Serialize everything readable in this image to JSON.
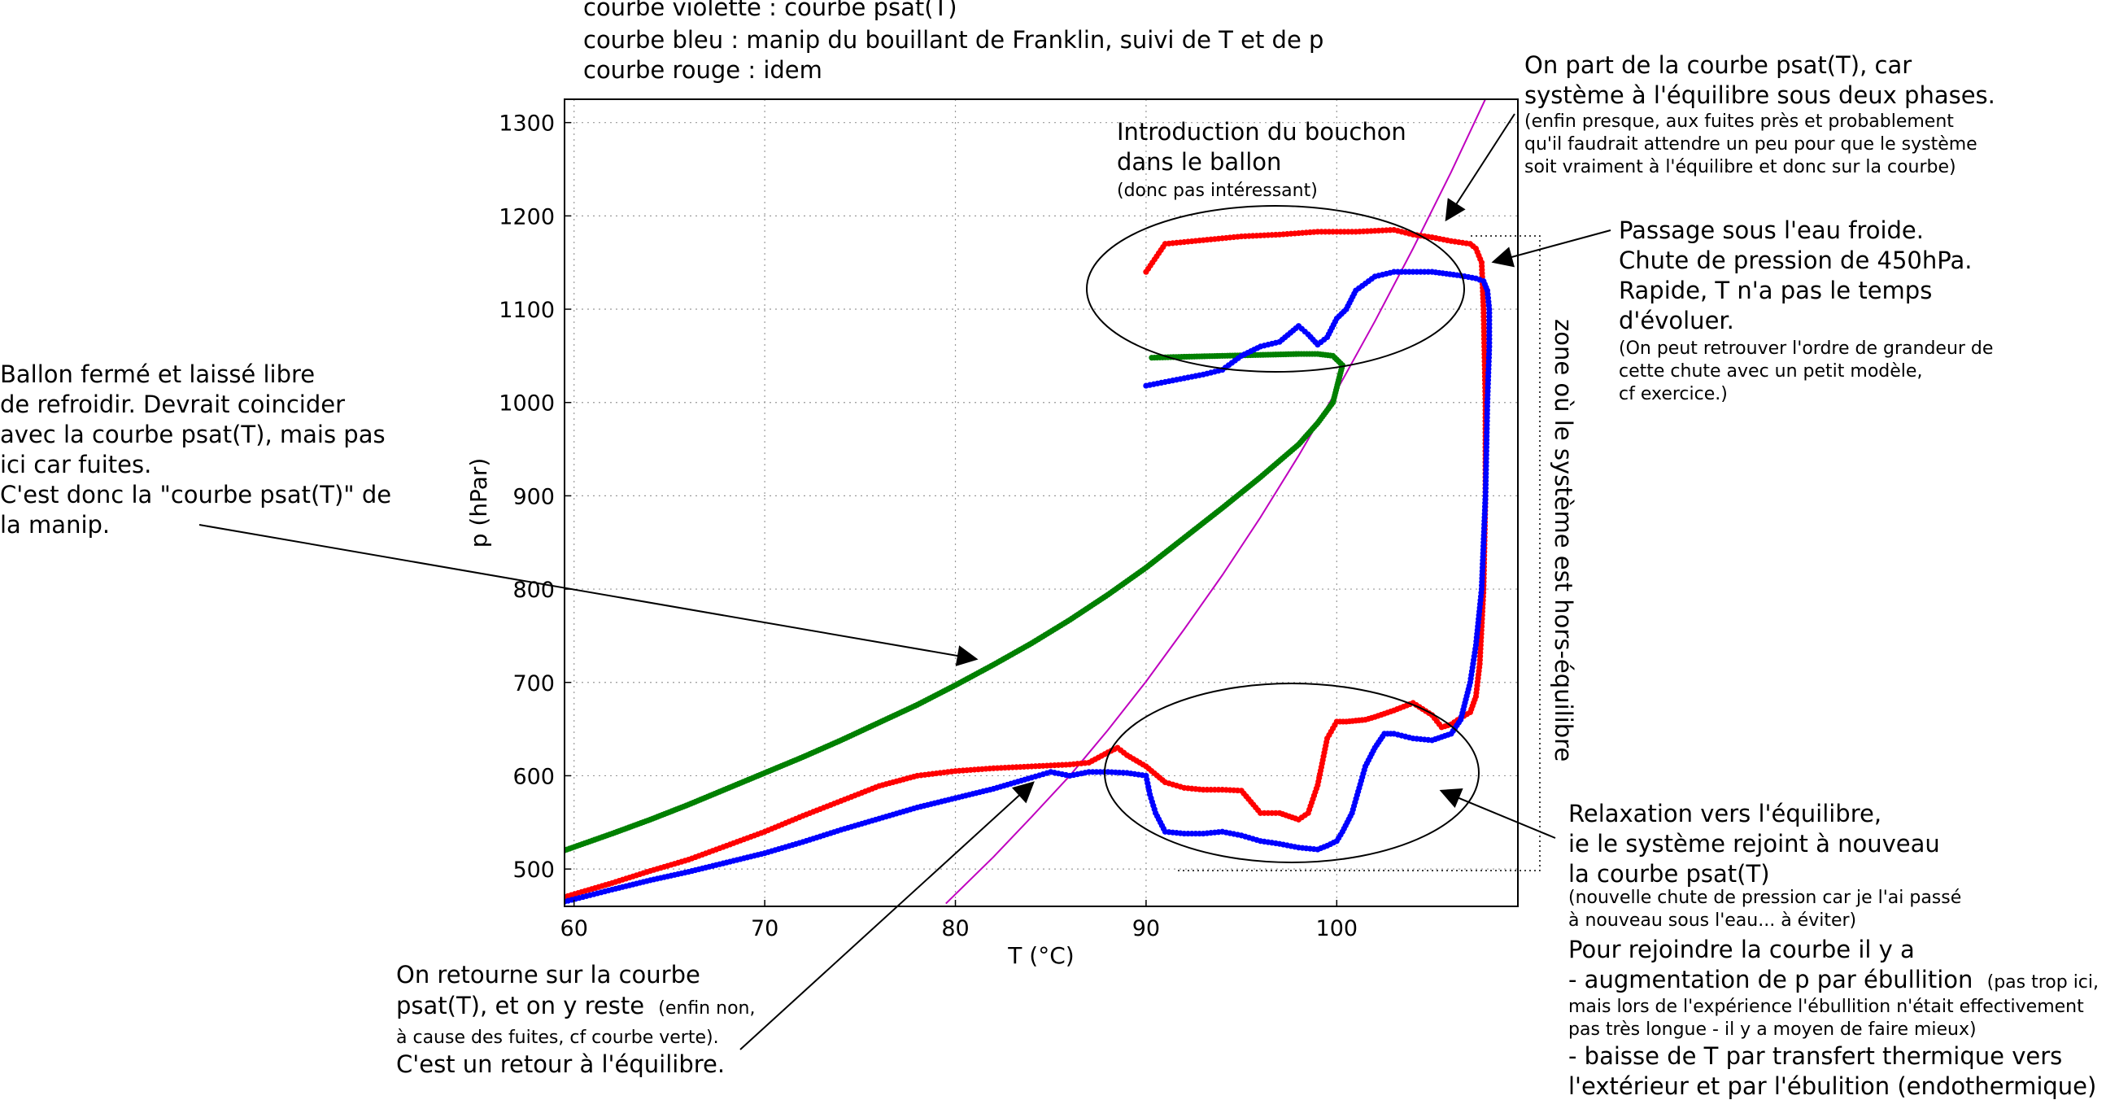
{
  "chart_data": {
    "type": "scatter",
    "xlabel": "T (°C)",
    "ylabel": "p (hPar)",
    "xlim": [
      59.5,
      109.5
    ],
    "ylim": [
      460,
      1325
    ],
    "xticks": [
      60,
      70,
      80,
      90,
      100
    ],
    "yticks": [
      500,
      600,
      700,
      800,
      900,
      1000,
      1100,
      1200,
      1300
    ],
    "grid": true,
    "legend_text": [
      "courbe violette : courbe psat(T)",
      "courbe bleu : manip du bouillant de Franklin, suivi de T et de p",
      "courbe rouge : idem"
    ],
    "colors": {
      "psat": "#bf00bf",
      "blue": "#0000ff",
      "red": "#ff0000",
      "green": "#008000"
    },
    "psat_curve": {
      "x": [
        79.5,
        82,
        84,
        86,
        88,
        90,
        92,
        94,
        96,
        98,
        100,
        102,
        104,
        106,
        108
      ],
      "y": [
        463,
        513,
        556,
        600,
        649,
        701,
        757,
        815,
        877,
        943,
        1013,
        1087,
        1165,
        1247,
        1334
      ]
    },
    "green_series": {
      "x": [
        59.5,
        62,
        64,
        66,
        68,
        70,
        72,
        74,
        76,
        78,
        80,
        82,
        84,
        86,
        88,
        90,
        92,
        94,
        96,
        98,
        99,
        99.8,
        100.3,
        99.8,
        99,
        98,
        96,
        94,
        92,
        90.3
      ],
      "y": [
        520,
        538,
        553,
        569,
        586,
        603,
        620,
        638,
        657,
        676,
        697,
        719,
        742,
        767,
        794,
        823,
        855,
        887,
        920,
        955,
        978,
        1000,
        1040,
        1050,
        1052,
        1052,
        1051,
        1050,
        1049,
        1048
      ]
    },
    "blue_series": {
      "x": [
        59.5,
        62,
        64,
        66,
        68,
        70,
        72,
        74,
        76,
        78,
        80,
        82,
        84,
        85,
        86,
        87,
        88,
        89,
        90,
        90.2,
        90.5,
        91,
        92,
        93,
        94,
        95,
        96,
        97,
        98,
        99,
        99.5,
        100,
        100.3,
        100.8,
        101.5,
        102,
        102.5,
        103,
        104,
        105,
        106,
        106.5,
        107,
        107.3,
        107.6,
        107.8,
        107.9,
        108,
        108,
        107.9,
        107.7,
        107.3,
        106.5,
        105,
        103,
        102,
        101,
        100.5,
        100,
        99.5,
        99,
        98.5,
        98,
        97,
        96,
        95,
        94,
        93,
        92,
        91,
        90
      ],
      "y": [
        465,
        478,
        488,
        497,
        507,
        517,
        529,
        542,
        554,
        566,
        576,
        586,
        598,
        604,
        600,
        604,
        604,
        603,
        600,
        580,
        560,
        540,
        538,
        538,
        540,
        536,
        530,
        527,
        523,
        521,
        525,
        530,
        540,
        560,
        610,
        630,
        645,
        645,
        640,
        638,
        645,
        660,
        700,
        740,
        800,
        900,
        1000,
        1060,
        1100,
        1120,
        1130,
        1133,
        1136,
        1140,
        1140,
        1135,
        1120,
        1100,
        1090,
        1070,
        1062,
        1073,
        1082,
        1065,
        1060,
        1050,
        1035,
        1030,
        1026,
        1022,
        1018
      ]
    },
    "red_series": {
      "x": [
        59.5,
        62,
        64,
        66,
        68,
        70,
        72,
        74,
        76,
        78,
        80,
        82,
        84,
        86,
        87,
        88,
        88.5,
        89,
        90,
        91,
        92,
        93,
        94,
        95,
        96,
        97,
        98,
        98.5,
        99,
        99.5,
        100,
        100.5,
        101,
        101.5,
        102,
        103,
        104,
        105,
        105.5,
        106,
        106.5,
        107,
        107.3,
        107.5,
        107.7,
        107.8,
        107.8,
        107.7,
        107.6,
        107.3,
        107,
        106,
        105,
        104,
        103,
        101,
        99,
        97,
        95,
        93,
        91,
        90
      ],
      "y": [
        470,
        485,
        498,
        510,
        525,
        540,
        557,
        573,
        589,
        600,
        605,
        608,
        610,
        612,
        614,
        625,
        630,
        622,
        610,
        593,
        587,
        585,
        585,
        584,
        560,
        560,
        553,
        560,
        590,
        640,
        658,
        658,
        659,
        660,
        663,
        670,
        678,
        665,
        652,
        655,
        662,
        668,
        685,
        720,
        800,
        900,
        1000,
        1100,
        1150,
        1165,
        1170,
        1173,
        1177,
        1180,
        1185,
        1183,
        1183,
        1180,
        1178,
        1174,
        1170,
        1140
      ]
    },
    "annotations": {
      "zone_label": "zone où le système est hors-équilibre",
      "intro_title": "Introduction du bouchon\ndans le ballon",
      "intro_note": "(donc pas intéressant)",
      "start_title": "On part de la courbe psat(T), car\nsystème à l'équilibre sous deux phases.",
      "start_note": "(enfin presque, aux fuites près et probablement\nqu'il faudrait attendre un peu pour que le système\nsoit vraiment à l'équilibre et donc sur la courbe)",
      "cold_title": "Passage sous l'eau froide.\nChute de pression de 450hPa.\nRapide, T n'a pas le temps\nd'évoluer.",
      "cold_note": "(On peut retrouver l'ordre de grandeur de\ncette chute avec un petit modèle,\ncf exercice.)",
      "ballon_text": "Ballon fermé et laissé libre\nde refroidir. Devrait coincider\navec la courbe psat(T), mais pas\nici car fuites.\nC'est donc la \"courbe psat(T)\" de\nla manip.",
      "relax_title": "Relaxation vers l'équilibre,\nie le système rejoint à nouveau\nla courbe psat(T)",
      "relax_note": "(nouvelle chute de pression car je l'ai passé\nà nouveau sous l'eau... à éviter)",
      "rejoin_title": "Pour rejoindre la courbe il y a",
      "rejoin_item1": "- augmentation de p par ébullition",
      "rejoin_item1_note": "(pas trop ici,",
      "rejoin_item1_note_2": "mais lors de l'expérience l'ébullition n'était effectivement\npas très longue - il y a moyen de faire mieux)",
      "rejoin_item2": "- baisse de T par transfert thermique vers\nl'extérieur et par l'ébulition (endothermique)",
      "return_line1": "On retourne sur la courbe",
      "return_line2a": "psat(T), et on y reste",
      "return_line2b": "(enfin non,",
      "return_line3": "à cause des fuites, cf courbe verte).",
      "return_line4": "C'est un retour à l'équilibre."
    }
  }
}
